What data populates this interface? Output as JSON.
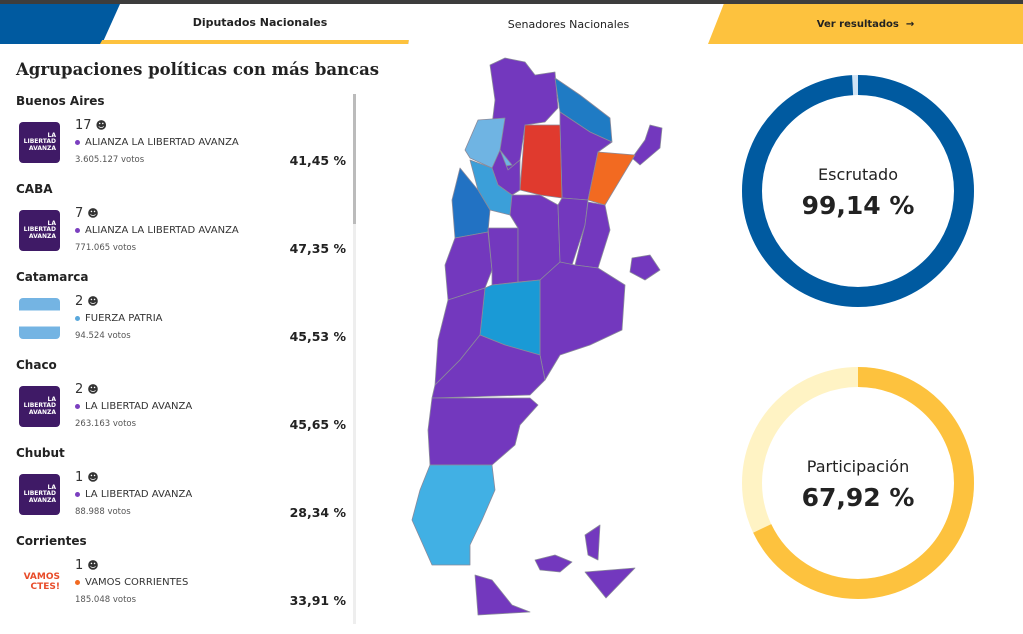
{
  "tabs": {
    "diputados": "Diputados Nacionales",
    "senadores": "Senadores Nacionales",
    "ver": "Ver resultados",
    "ver_icon": "→"
  },
  "title": "Agrupaciones políticas con más bancas",
  "provinces": [
    {
      "name": "Buenos Aires",
      "seats": "17",
      "party": "ALIANZA LA LIBERTAD AVANZA",
      "color": "#7b3fbf",
      "votes": "3.605.127 votos",
      "pct": "41,45 %",
      "logo": "lla"
    },
    {
      "name": "CABA",
      "seats": "7",
      "party": "ALIANZA LA LIBERTAD AVANZA",
      "color": "#7b3fbf",
      "votes": "771.065 votos",
      "pct": "47,35 %",
      "logo": "lla"
    },
    {
      "name": "Catamarca",
      "seats": "2",
      "party": "FUERZA PATRIA",
      "color": "#5aa8dc",
      "votes": "94.524 votos",
      "pct": "45,53 %",
      "logo": "flag"
    },
    {
      "name": "Chaco",
      "seats": "2",
      "party": "LA LIBERTAD AVANZA",
      "color": "#7b3fbf",
      "votes": "263.163 votos",
      "pct": "45,65 %",
      "logo": "lla"
    },
    {
      "name": "Chubut",
      "seats": "1",
      "party": "LA LIBERTAD AVANZA",
      "color": "#7b3fbf",
      "votes": "88.988 votos",
      "pct": "28,34 %",
      "logo": "lla"
    },
    {
      "name": "Corrientes",
      "seats": "1",
      "party": "VAMOS CORRIENTES",
      "color": "#f26a21",
      "votes": "185.048 votos",
      "pct": "33,91 %",
      "logo": "vamos"
    }
  ],
  "logo_text": {
    "lla": "LA LIBERTAD AVANZA",
    "vamos": "VAMOS CTES!"
  },
  "escrutado": {
    "label": "Escrutado",
    "value": "99,14 %",
    "fraction": 0.9914,
    "color": "#005aa0",
    "track": "#cfe3f5"
  },
  "participacion": {
    "label": "Participación",
    "value": "67,92 %",
    "fraction": 0.6792,
    "color": "#fdc23e",
    "track": "#fff3c4"
  }
}
